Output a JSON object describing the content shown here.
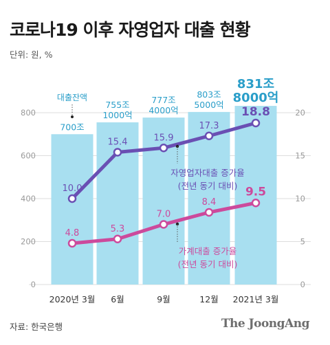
{
  "title": "코로나19 이후 자영업자 대출 현황",
  "unit": "단위: 원, %",
  "source": "자료: 한국은행",
  "brand": "The JoongAng",
  "colors": {
    "bar": "#a8dff0",
    "bar_label": "#2a9ec9",
    "self_employed_line": "#6a4fb3",
    "household_line": "#cc4a9c",
    "grid": "#dddddd",
    "axis_text": "#9a9a9a"
  },
  "chart_data": {
    "type": "bar+line",
    "categories": [
      "2020년 3월",
      "6월",
      "9월",
      "12월",
      "2021년 3월"
    ],
    "left_axis": {
      "ticks": [
        "0",
        "200",
        "400",
        "600",
        "800"
      ],
      "range": [
        0,
        800
      ]
    },
    "right_axis": {
      "ticks": [
        "0",
        "5",
        "10",
        "15",
        "20"
      ],
      "range": [
        0,
        20
      ]
    },
    "bars": {
      "name": "대출잔액",
      "values": [
        700,
        755.1,
        777.4,
        803.5,
        831.8
      ],
      "labels": [
        [
          "700조"
        ],
        [
          "755조",
          "1000억"
        ],
        [
          "777조",
          "4000억"
        ],
        [
          "803조",
          "5000억"
        ],
        [
          "831조",
          "8000억"
        ]
      ]
    },
    "series": [
      {
        "name": "자영업자대출 증가율",
        "sub": "(전년 동기 대비)",
        "values": [
          10.0,
          15.4,
          15.9,
          17.3,
          18.8
        ],
        "labels": [
          "10.0",
          "15.4",
          "15.9",
          "17.3",
          "18.8"
        ]
      },
      {
        "name": "가계대출 증가율",
        "sub": "(전년 동기 대비)",
        "values": [
          4.8,
          5.3,
          7.0,
          8.4,
          9.5
        ],
        "labels": [
          "4.8",
          "5.3",
          "7.0",
          "8.4",
          "9.5"
        ]
      }
    ]
  }
}
